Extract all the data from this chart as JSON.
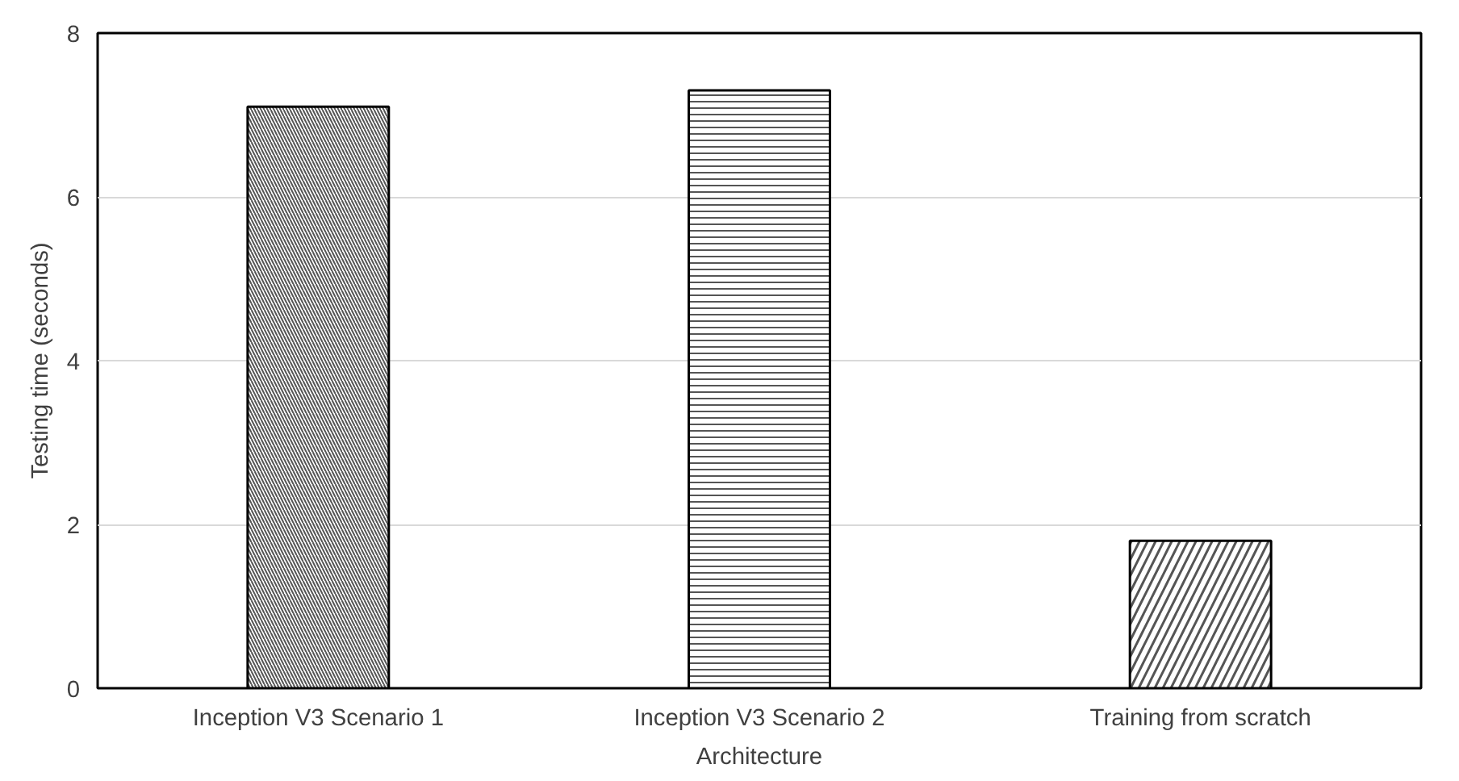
{
  "chart_data": {
    "type": "bar",
    "xlabel": "Architecture",
    "ylabel": "Testing time (seconds)",
    "categories": [
      "Inception V3 Scenario 1",
      "Inception V3 Scenario 2",
      "Training from scratch"
    ],
    "values": [
      7.1,
      7.3,
      1.8
    ],
    "colors": [
      "#ffffff",
      "#ffffff",
      "#ffffff"
    ],
    "ylim": [
      0,
      8
    ],
    "yticks": [
      0,
      2,
      4,
      6,
      8
    ],
    "grid": "y"
  }
}
